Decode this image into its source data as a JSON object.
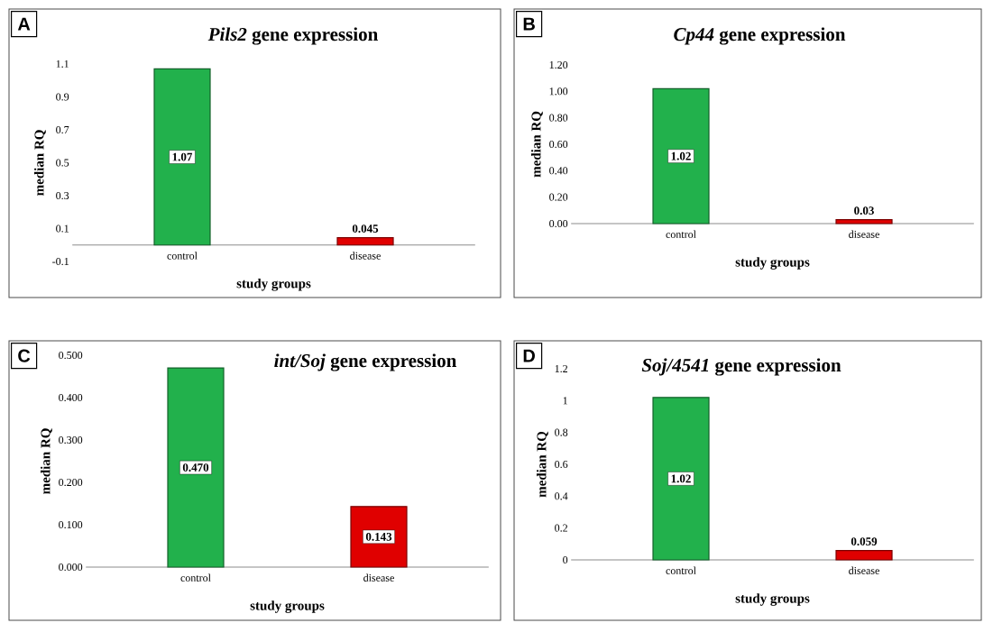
{
  "chart_data": [
    {
      "type": "bar",
      "title": "*Pils2* gene expression",
      "xlabel": "study groups",
      "ylabel": "median RQ",
      "annotations": [
        "A"
      ],
      "categories": [
        "control",
        "disease"
      ],
      "values": [
        1.07,
        0.045
      ],
      "colors": [
        "#22b14c",
        "#e00000"
      ],
      "value_labels": [
        "1.07",
        "0.045"
      ],
      "ylim": [
        -0.1,
        1.1
      ],
      "yticks": [
        -0.1,
        0.1,
        0.3,
        0.5,
        0.7,
        0.9,
        1.1
      ]
    },
    {
      "type": "bar",
      "title": "*Cp44* gene expression",
      "xlabel": "study groups",
      "ylabel": "median RQ",
      "annotations": [
        "B"
      ],
      "categories": [
        "control",
        "disease"
      ],
      "values": [
        1.02,
        0.03
      ],
      "colors": [
        "#22b14c",
        "#e00000"
      ],
      "value_labels": [
        "1.02",
        "0.03"
      ],
      "ylim": [
        0,
        1.2
      ],
      "yticks": [
        {
          "value": 0,
          "label": "0.00"
        },
        {
          "value": 0.2,
          "label": "0.20"
        },
        {
          "value": 0.4,
          "label": "0.40"
        },
        {
          "value": 0.6,
          "label": "0.60"
        },
        {
          "value": 0.8,
          "label": "0.80"
        },
        {
          "value": 1,
          "label": "1.00"
        },
        {
          "value": 1.2,
          "label": "1.20"
        }
      ]
    },
    {
      "type": "bar",
      "title": "*int/Soj*  gene expression",
      "xlabel": "study groups",
      "ylabel": "median RQ",
      "annotations": [
        "C"
      ],
      "categories": [
        "control",
        "disease"
      ],
      "values": [
        0.47,
        0.143
      ],
      "colors": [
        "#22b14c",
        "#e00000"
      ],
      "value_labels": [
        "0.470",
        "0.143"
      ],
      "ylim": [
        0,
        0.5
      ],
      "yticks": [
        {
          "value": 0,
          "label": "0.000"
        },
        {
          "value": 0.1,
          "label": "0.100"
        },
        {
          "value": 0.2,
          "label": "0.200"
        },
        {
          "value": 0.3,
          "label": "0.300"
        },
        {
          "value": 0.4,
          "label": "0.400"
        },
        {
          "value": 0.5,
          "label": "0.500"
        }
      ]
    },
    {
      "type": "bar",
      "title": "*Soj/4541* gene expression",
      "xlabel": "study groups",
      "ylabel": "median RQ",
      "annotations": [
        "D"
      ],
      "categories": [
        "control",
        "disease"
      ],
      "values": [
        1.02,
        0.059
      ],
      "colors": [
        "#22b14c",
        "#e00000"
      ],
      "value_labels": [
        "1.02",
        "0.059"
      ],
      "ylim": [
        0,
        1.2
      ],
      "yticks": [
        0,
        0.2,
        0.4,
        0.6,
        0.8,
        1,
        1.2
      ]
    }
  ]
}
